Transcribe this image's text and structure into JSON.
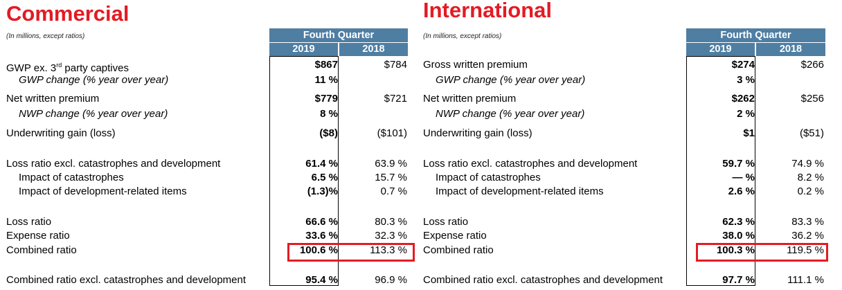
{
  "accent_color": "#e31b23",
  "header_color": "#4f7ea3",
  "sections": [
    {
      "title": "Commercial",
      "note": "(In millions, except ratios)",
      "header": {
        "period": "Fourth Quarter",
        "year1": "2019",
        "year2": "2018"
      },
      "rows": [
        {
          "label": "GWP ex. 3",
          "sup": "rd",
          "label_tail": " party captives",
          "v2019": "$867",
          "v2018": "$784"
        },
        {
          "label": "GWP change (% year over year)",
          "v2019": "11 %",
          "v2018": ""
        },
        {
          "label": "Net written premium",
          "v2019": "$779",
          "v2018": "$721"
        },
        {
          "label": "NWP change (% year over year)",
          "v2019": "8 %",
          "v2018": ""
        },
        {
          "label": "Underwriting gain (loss)",
          "v2019": "($8)",
          "v2018": "($101)"
        },
        {
          "label": "Loss ratio excl. catastrophes and development",
          "v2019": "61.4 %",
          "v2018": "63.9 %"
        },
        {
          "label": "Impact of catastrophes",
          "v2019": "6.5 %",
          "v2018": "15.7 %"
        },
        {
          "label": "Impact of development-related items",
          "v2019": "(1.3)%",
          "v2018": "0.7 %"
        },
        {
          "label": "Loss ratio",
          "v2019": "66.6 %",
          "v2018": "80.3 %"
        },
        {
          "label": "Expense ratio",
          "v2019": "33.6 %",
          "v2018": "32.3 %"
        },
        {
          "label": "Combined ratio",
          "v2019": "100.6 %",
          "v2018": "113.3 %"
        },
        {
          "label": "Combined ratio excl. catastrophes and development",
          "v2019": "95.4 %",
          "v2018": "96.9 %"
        }
      ]
    },
    {
      "title": "International",
      "note": "(In millions, except ratios)",
      "header": {
        "period": "Fourth Quarter",
        "year1": "2019",
        "year2": "2018"
      },
      "rows": [
        {
          "label": "Gross written premium",
          "v2019": "$274",
          "v2018": "$266"
        },
        {
          "label": "GWP change (% year over year)",
          "v2019": "3 %",
          "v2018": ""
        },
        {
          "label": "Net written premium",
          "v2019": "$262",
          "v2018": "$256"
        },
        {
          "label": "NWP change (% year over year)",
          "v2019": "2 %",
          "v2018": ""
        },
        {
          "label": "Underwriting gain (loss)",
          "v2019": "$1",
          "v2018": "($51)"
        },
        {
          "label": "Loss ratio excl. catastrophes and development",
          "v2019": "59.7 %",
          "v2018": "74.9 %"
        },
        {
          "label": "Impact of catastrophes",
          "v2019": "— %",
          "v2018": "8.2 %"
        },
        {
          "label": "Impact of development-related items",
          "v2019": "2.6 %",
          "v2018": "0.2 %"
        },
        {
          "label": "Loss ratio",
          "v2019": "62.3 %",
          "v2018": "83.3 %"
        },
        {
          "label": "Expense ratio",
          "v2019": "38.0 %",
          "v2018": "36.2 %"
        },
        {
          "label": "Combined ratio",
          "v2019": "100.3 %",
          "v2018": "119.5 %"
        },
        {
          "label": "Combined ratio excl. catastrophes and development",
          "v2019": "97.7 %",
          "v2018": "111.1 %"
        }
      ]
    }
  ]
}
